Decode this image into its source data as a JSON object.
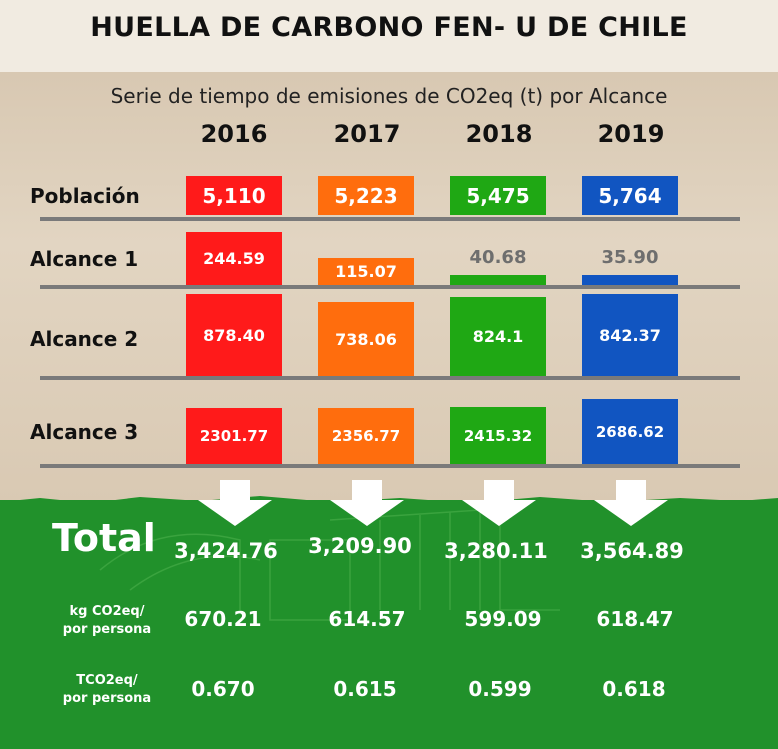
{
  "title": "HUELLA DE CARBONO FEN- U DE CHILE",
  "subtitle": "Serie de tiempo de emisiones de CO2eq (t) por Alcance",
  "years": [
    "2016",
    "2017",
    "2018",
    "2019"
  ],
  "colors": [
    "#ff1a1a",
    "#ff6d0d",
    "#1fa814",
    "#1155c1"
  ],
  "rows": {
    "poblacion": {
      "label": "Población",
      "values": [
        "5,110",
        "5,223",
        "5,475",
        "5,764"
      ]
    },
    "alcance1": {
      "label": "Alcance 1",
      "values": [
        "244.59",
        "115.07",
        "40.68",
        "35.90"
      ]
    },
    "alcance2": {
      "label": "Alcance 2",
      "values": [
        "878.40",
        "738.06",
        "824.1",
        "842.37"
      ]
    },
    "alcance3": {
      "label": "Alcance 3",
      "values": [
        "2301.77",
        "2356.77",
        "2415.32",
        "2686.62"
      ]
    }
  },
  "totals": {
    "label": "Total",
    "values": [
      "3,424.76",
      "3,209.90",
      "3,280.11",
      "3,564.89"
    ]
  },
  "kg_per_person": {
    "label_line1": "kg CO2eq/",
    "label_line2": "por persona",
    "values": [
      "670.21",
      "614.57",
      "599.09",
      "618.47"
    ]
  },
  "t_per_person": {
    "label_line1": "TCO2eq/",
    "label_line2": "por persona",
    "values": [
      "0.670",
      "0.615",
      "0.599",
      "0.618"
    ]
  },
  "chart_data": {
    "type": "table",
    "title": "HUELLA DE CARBONO FEN- U DE CHILE",
    "subtitle": "Serie de tiempo de emisiones de CO2eq (t) por Alcance",
    "columns": [
      "2016",
      "2017",
      "2018",
      "2019"
    ],
    "rows": [
      {
        "name": "Población",
        "values": [
          5110,
          5223,
          5475,
          5764
        ]
      },
      {
        "name": "Alcance 1",
        "values": [
          244.59,
          115.07,
          40.68,
          35.9
        ]
      },
      {
        "name": "Alcance 2",
        "values": [
          878.4,
          738.06,
          824.1,
          842.37
        ]
      },
      {
        "name": "Alcance 3",
        "values": [
          2301.77,
          2356.77,
          2415.32,
          2686.62
        ]
      },
      {
        "name": "Total",
        "values": [
          3424.76,
          3209.9,
          3280.11,
          3564.89
        ]
      },
      {
        "name": "kg CO2eq/ por persona",
        "values": [
          670.21,
          614.57,
          599.09,
          618.47
        ]
      },
      {
        "name": "TCO2eq/ por persona",
        "values": [
          0.67,
          0.615,
          0.599,
          0.618
        ]
      }
    ]
  }
}
